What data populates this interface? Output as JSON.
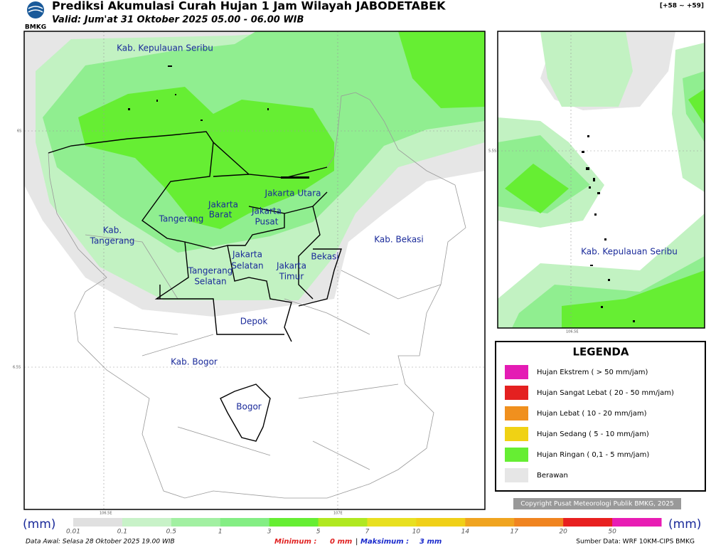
{
  "header": {
    "title": "Prediksi Akumulasi Curah Hujan 1 Jam Wilayah JABODETABEK",
    "subtitle": "Valid: Jum'at 31 Oktober 2025 05.00 - 06.00 WIB",
    "logo": "BMKG",
    "range": "[+58 ~ +59]"
  },
  "map": {
    "labels": [
      "Kab. Kepulauan Seribu",
      "Jakarta Utara",
      "Jakarta",
      "Barat",
      "Jakarta",
      "Pusat",
      "Tangerang",
      "Kab.",
      "Tangerang",
      "Jakarta",
      "Selatan",
      "Jakarta",
      "Timur",
      "Bekasi",
      "Kab. Bekasi",
      "Tangerang",
      "Selatan",
      "Depok",
      "Kab. Bogor",
      "Bogor"
    ],
    "grid_labels": [
      "6S",
      "6.5S",
      "106.5E",
      "107E"
    ]
  },
  "inset": {
    "label": "Kab. Kepulauan Seribu",
    "grid_labels": [
      "5.5S",
      "106.5E"
    ]
  },
  "legend": {
    "title": "LEGENDA",
    "items": [
      {
        "label": "Hujan Ekstrem ( > 50 mm/jam)",
        "color": "#e41cb4"
      },
      {
        "label": "Hujan Sangat Lebat ( 20 - 50 mm/jam)",
        "color": "#e42020"
      },
      {
        "label": "Hujan Lebat ( 10 - 20 mm/jam)",
        "color": "#f0901e"
      },
      {
        "label": "Hujan Sedang ( 5 - 10 mm/jam)",
        "color": "#f0d214"
      },
      {
        "label": "Hujan Ringan ( 0,1 - 5 mm/jam)",
        "color": "#66ee33"
      },
      {
        "label": "Berawan",
        "color": "#e6e6e6"
      }
    ]
  },
  "copyright": "Copyright Pusat Meteorologi Publik BMKG, 2025",
  "colorbar": {
    "unit": "(mm)",
    "ticks": [
      0.01,
      0.1,
      0.5,
      1,
      3,
      5,
      7,
      10,
      14,
      17,
      20,
      50
    ],
    "colors": [
      "#e0e0e0",
      "#c8f2c8",
      "#a2f0a2",
      "#84ee84",
      "#66ee33",
      "#b0e820",
      "#e8e020",
      "#f0d018",
      "#f0a420",
      "#f08420",
      "#e82020",
      "#e81cb4"
    ]
  },
  "footer": {
    "data_awal": "Data Awal: Selasa 28 Oktober 2025 19.00 WIB",
    "min_label": "Minimum :",
    "min_value": "0 mm",
    "separator": "|",
    "max_label": "Maksimum :",
    "max_value": "3 mm",
    "source": "Sumber Data: WRF 10KM-CIPS BMKG"
  }
}
